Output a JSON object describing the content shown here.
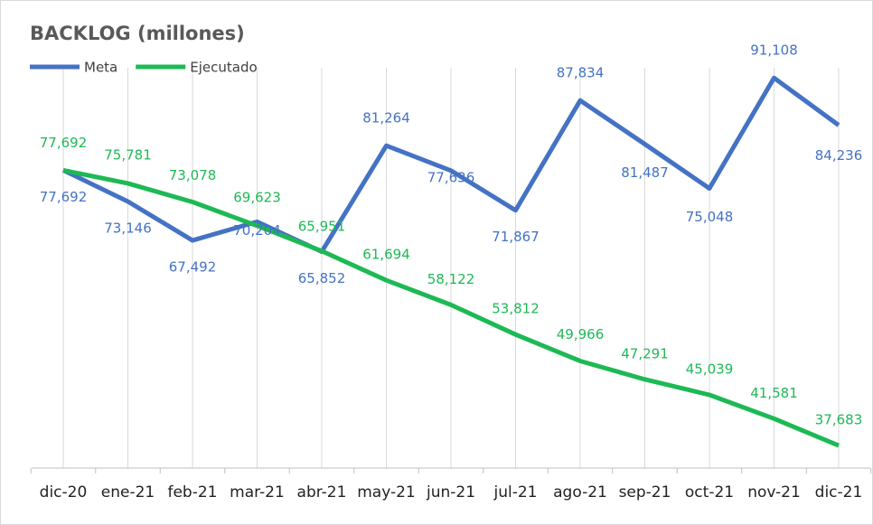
{
  "chart_data": {
    "type": "line",
    "title": "BACKLOG (millones)",
    "categories": [
      "dic-20",
      "ene-21",
      "feb-21",
      "mar-21",
      "abr-21",
      "may-21",
      "jun-21",
      "jul-21",
      "ago-21",
      "sep-21",
      "oct-21",
      "nov-21",
      "dic-21"
    ],
    "series": [
      {
        "name": "Meta",
        "color": "#4472c4",
        "values": [
          77692,
          73146,
          67492,
          70204,
          65852,
          81264,
          77636,
          71867,
          87834,
          81487,
          75048,
          91108,
          84236
        ],
        "value_labels": [
          "77,692",
          "73,146",
          "67,492",
          "70,204",
          "65,852",
          "81,264",
          "77,636",
          "71,867",
          "87,834",
          "81,487",
          "75,048",
          "91,108",
          "84,236"
        ]
      },
      {
        "name": "Ejecutado",
        "color": "#1db954",
        "values": [
          77692,
          75781,
          73078,
          69623,
          65951,
          61694,
          58122,
          53812,
          49966,
          47291,
          45039,
          41581,
          37683
        ],
        "value_labels": [
          "77,692",
          "75,781",
          "73,078",
          "69,623",
          "65,951",
          "61,694",
          "58,122",
          "53,812",
          "49,966",
          "47,291",
          "45,039",
          "41,581",
          "37,683"
        ]
      }
    ],
    "ylim": [
      34400,
      96000
    ],
    "grid": true
  }
}
